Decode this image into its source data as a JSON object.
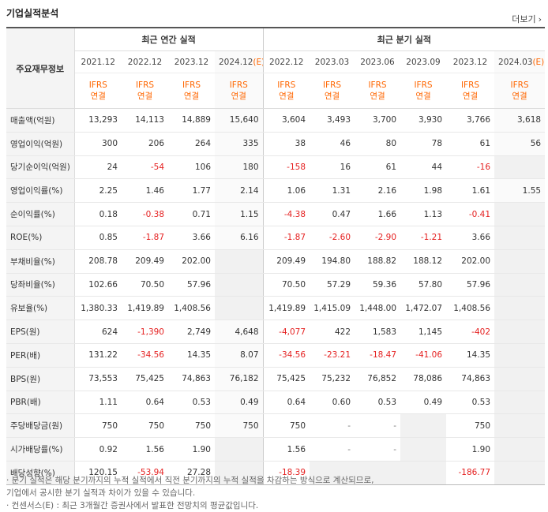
{
  "section_title": "기업실적분석",
  "more_label": "더보기",
  "header": {
    "label": "주요재무정보",
    "annual_title": "최근 연간 실적",
    "quarter_title": "최근 분기 실적",
    "periods": [
      {
        "date": "2021.12",
        "est": ""
      },
      {
        "date": "2022.12",
        "est": ""
      },
      {
        "date": "2023.12",
        "est": ""
      },
      {
        "date": "2024.12",
        "est": "(E)"
      },
      {
        "date": "2022.12",
        "est": ""
      },
      {
        "date": "2023.03",
        "est": ""
      },
      {
        "date": "2023.06",
        "est": ""
      },
      {
        "date": "2023.09",
        "est": ""
      },
      {
        "date": "2023.12",
        "est": ""
      },
      {
        "date": "2024.03",
        "est": "(E)"
      }
    ],
    "ifrs_line1": "IFRS",
    "ifrs_line2": "연결"
  },
  "rows": [
    {
      "label": "매출액(억원)",
      "values": [
        "13,293",
        "14,113",
        "14,889",
        "15,640",
        "3,604",
        "3,493",
        "3,700",
        "3,930",
        "3,766",
        "3,618"
      ]
    },
    {
      "label": "영업이익(억원)",
      "values": [
        "300",
        "206",
        "264",
        "335",
        "38",
        "46",
        "80",
        "78",
        "61",
        "56"
      ]
    },
    {
      "label": "당기순이익(억원)",
      "values": [
        "24",
        "-54",
        "106",
        "180",
        "-158",
        "16",
        "61",
        "44",
        "-16",
        ""
      ]
    },
    {
      "label": "영업이익률(%)",
      "values": [
        "2.25",
        "1.46",
        "1.77",
        "2.14",
        "1.06",
        "1.31",
        "2.16",
        "1.98",
        "1.61",
        "1.55"
      ]
    },
    {
      "label": "순이익률(%)",
      "values": [
        "0.18",
        "-0.38",
        "0.71",
        "1.15",
        "-4.38",
        "0.47",
        "1.66",
        "1.13",
        "-0.41",
        ""
      ]
    },
    {
      "label": "ROE(%)",
      "values": [
        "0.85",
        "-1.87",
        "3.66",
        "6.16",
        "-1.87",
        "-2.60",
        "-2.90",
        "-1.21",
        "3.66",
        ""
      ]
    },
    {
      "label": "부채비율(%)",
      "values": [
        "208.78",
        "209.49",
        "202.00",
        "",
        "209.49",
        "194.80",
        "188.82",
        "188.12",
        "202.00",
        ""
      ]
    },
    {
      "label": "당좌비율(%)",
      "values": [
        "102.66",
        "70.50",
        "57.96",
        "",
        "70.50",
        "57.29",
        "59.36",
        "57.80",
        "57.96",
        ""
      ]
    },
    {
      "label": "유보율(%)",
      "values": [
        "1,380.33",
        "1,419.89",
        "1,408.56",
        "",
        "1,419.89",
        "1,415.09",
        "1,448.00",
        "1,472.07",
        "1,408.56",
        ""
      ]
    },
    {
      "label": "EPS(원)",
      "values": [
        "624",
        "-1,390",
        "2,749",
        "4,648",
        "-4,077",
        "422",
        "1,583",
        "1,145",
        "-402",
        ""
      ]
    },
    {
      "label": "PER(배)",
      "values": [
        "131.22",
        "-34.56",
        "14.35",
        "8.07",
        "-34.56",
        "-23.21",
        "-18.47",
        "-41.06",
        "14.35",
        ""
      ]
    },
    {
      "label": "BPS(원)",
      "values": [
        "73,553",
        "75,425",
        "74,863",
        "76,182",
        "75,425",
        "75,232",
        "76,852",
        "78,086",
        "74,863",
        ""
      ]
    },
    {
      "label": "PBR(배)",
      "values": [
        "1.11",
        "0.64",
        "0.53",
        "0.49",
        "0.64",
        "0.60",
        "0.53",
        "0.49",
        "0.53",
        ""
      ]
    },
    {
      "label": "주당배당금(원)",
      "values": [
        "750",
        "750",
        "750",
        "750",
        "750",
        "-",
        "-",
        "",
        "750",
        ""
      ]
    },
    {
      "label": "시가배당률(%)",
      "values": [
        "0.92",
        "1.56",
        "1.90",
        "",
        "1.56",
        "-",
        "-",
        "",
        "1.90",
        ""
      ]
    },
    {
      "label": "배당성향(%)",
      "values": [
        "120.15",
        "-53.94",
        "27.28",
        "",
        "-18.39",
        "",
        "",
        "",
        "-186.77",
        ""
      ]
    }
  ],
  "notes": [
    "· 분기 실적은 해당 분기까지의 누적 실적에서 직전 분기까지의 누적 실적을 차감하는 방식으로 계산되므로,",
    "   기업에서 공시한 분기 실적과 차이가 있을 수 있습니다.",
    "· 컨센서스(E) : 최근 3개월간 증권사에서 발표한 전망치의 평균값입니다."
  ]
}
